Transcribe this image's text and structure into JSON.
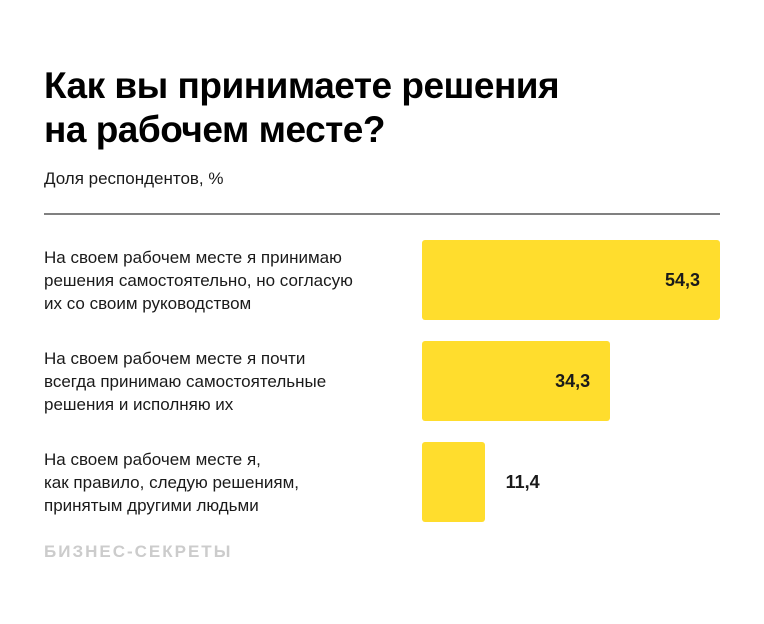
{
  "header": {
    "title": "Как вы принимаете решения\nна рабочем месте?",
    "subtitle": "Доля респондентов, %"
  },
  "footer": {
    "brand": "БИЗНЕС-СЕКРЕТЫ"
  },
  "colors": {
    "bar": "#FFDD2D",
    "title_text": "#000000",
    "body_text": "#1A1A1A",
    "divider": "#808080",
    "brand_text": "#CCCCCC",
    "background": "#FFFFFF"
  },
  "chart_data": {
    "type": "bar",
    "orientation": "horizontal",
    "title": "Как вы принимаете решения на рабочем месте?",
    "value_axis_label": "Доля респондентов, %",
    "categories": [
      "На своем рабочем месте я принимаю\nрешения самостоятельно, но согласую\nих со своим руководством",
      "На своем рабочем месте я почти\nвсегда принимаю самостоятельные\nрешения и исполняю их",
      "На своем рабочем месте я,\nкак правило, следую решениям,\nпринятым другими людьми"
    ],
    "values": [
      54.3,
      34.3,
      11.4
    ],
    "value_labels": [
      "54,3",
      "34,3",
      "11,4"
    ],
    "xlim": [
      0,
      54.3
    ],
    "grid": false,
    "legend": false,
    "bar_color": "#FFDD2D"
  }
}
